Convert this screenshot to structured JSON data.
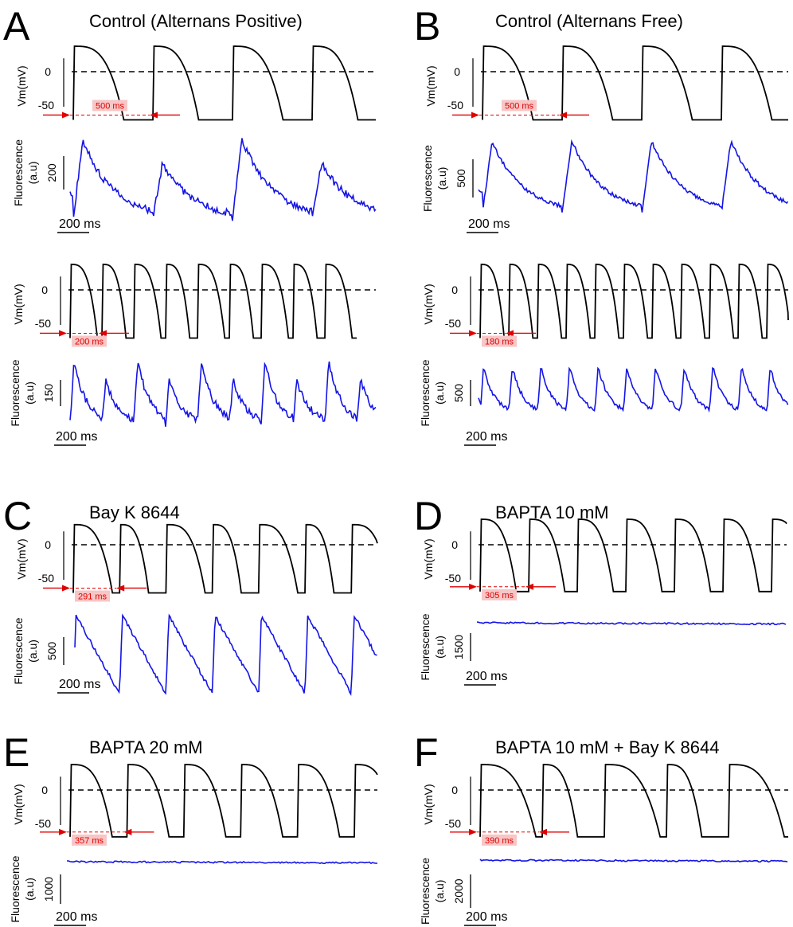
{
  "colors": {
    "voltage_trace": "#000000",
    "fluorescence_trace": "#1414e6",
    "interval_marker": "#e00000",
    "interval_label_bg": "#f7c6c6"
  },
  "chart_data": [
    {
      "type": "line",
      "panel": "A",
      "title": "Control (Alternans Positive)",
      "sub_panels": [
        {
          "interval_label": "500 ms",
          "cycle_length_ms": 500,
          "voltage": {
            "ylabel": "Vm(mV)",
            "ticks": [
              "0",
              "-50"
            ],
            "ylim": [
              -75,
              45
            ],
            "reference_line_mV": 0,
            "beats": 4,
            "peak_mV": 38,
            "rest_mV": -72
          },
          "fluorescence": {
            "ylabel": "Fluorescence",
            "unit": "(a.u)",
            "scale_bar": "200",
            "pattern": "alternating"
          },
          "time_scale_bar": "200 ms"
        },
        {
          "interval_label": "200 ms",
          "cycle_length_ms": 200,
          "voltage": {
            "ylabel": "Vm(mV)",
            "ticks": [
              "0",
              "-50"
            ],
            "ylim": [
              -75,
              45
            ],
            "reference_line_mV": 0,
            "beats": 9,
            "peak_mV": 38,
            "rest_mV": -72
          },
          "fluorescence": {
            "ylabel": "Fluorescence",
            "unit": "(a.u)",
            "scale_bar": "150",
            "pattern": "alternating"
          },
          "time_scale_bar": "200 ms"
        }
      ]
    },
    {
      "type": "line",
      "panel": "B",
      "title": "Control (Alternans Free)",
      "sub_panels": [
        {
          "interval_label": "500 ms",
          "cycle_length_ms": 500,
          "voltage": {
            "ylabel": "Vm(mV)",
            "ticks": [
              "0",
              "-50"
            ],
            "ylim": [
              -75,
              45
            ],
            "reference_line_mV": 0,
            "beats": 4,
            "peak_mV": 38,
            "rest_mV": -72
          },
          "fluorescence": {
            "ylabel": "Fluorescence",
            "unit": "(a.u)",
            "scale_bar": "500",
            "pattern": "uniform"
          },
          "time_scale_bar": "200 ms"
        },
        {
          "interval_label": "180 ms",
          "cycle_length_ms": 180,
          "voltage": {
            "ylabel": "Vm(mV)",
            "ticks": [
              "0",
              "-50"
            ],
            "ylim": [
              -75,
              45
            ],
            "reference_line_mV": 0,
            "beats": 11,
            "peak_mV": 38,
            "rest_mV": -72
          },
          "fluorescence": {
            "ylabel": "Fluorescence",
            "unit": "(a.u)",
            "scale_bar": "500",
            "pattern": "uniform"
          },
          "time_scale_bar": "200 ms"
        }
      ]
    },
    {
      "type": "line",
      "panel": "C",
      "title": "Bay K 8644",
      "sub_panels": [
        {
          "interval_label": "291 ms",
          "cycle_length_ms": 291,
          "voltage": {
            "ylabel": "Vm(mV)",
            "ticks": [
              "0",
              "-50"
            ],
            "ylim": [
              -75,
              45
            ],
            "reference_line_mV": 0,
            "beats": 7,
            "peak_mV": 30,
            "rest_mV": -72
          },
          "fluorescence": {
            "ylabel": "Fluorescence",
            "unit": "(a.u)",
            "scale_bar": "500",
            "pattern": "large-transient"
          },
          "time_scale_bar": "200 ms"
        }
      ]
    },
    {
      "type": "line",
      "panel": "D",
      "title": "BAPTA 10 mM",
      "sub_panels": [
        {
          "interval_label": "305 ms",
          "cycle_length_ms": 305,
          "voltage": {
            "ylabel": "Vm(mV)",
            "ticks": [
              "0",
              "-50"
            ],
            "ylim": [
              -75,
              45
            ],
            "reference_line_mV": 0,
            "beats": 7,
            "peak_mV": 38,
            "rest_mV": -70
          },
          "fluorescence": {
            "ylabel": "Fluorescence",
            "unit": "(a.u)",
            "scale_bar": "1500",
            "pattern": "flat"
          },
          "time_scale_bar": "200 ms"
        }
      ]
    },
    {
      "type": "line",
      "panel": "E",
      "title": "BAPTA 20 mM",
      "sub_panels": [
        {
          "interval_label": "357 ms",
          "cycle_length_ms": 357,
          "voltage": {
            "ylabel": "Vm(mV)",
            "ticks": [
              "0",
              "-50"
            ],
            "ylim": [
              -75,
              45
            ],
            "reference_line_mV": 0,
            "beats": 6,
            "peak_mV": 38,
            "rest_mV": -70
          },
          "fluorescence": {
            "ylabel": "Fluorescence",
            "unit": "(a.u)",
            "scale_bar": "1000",
            "pattern": "flat"
          },
          "time_scale_bar": "200 ms"
        }
      ]
    },
    {
      "type": "line",
      "panel": "F",
      "title": "BAPTA 10 mM + Bay K 8644",
      "sub_panels": [
        {
          "interval_label": "390 ms",
          "cycle_length_ms": 390,
          "voltage": {
            "ylabel": "Vm(mV)",
            "ticks": [
              "0",
              "-50"
            ],
            "ylim": [
              -75,
              45
            ],
            "reference_line_mV": 0,
            "beats": 7,
            "peak_mV": 38,
            "rest_mV": -70
          },
          "fluorescence": {
            "ylabel": "Fluorescence",
            "unit": "(a.u)",
            "scale_bar": "2000",
            "pattern": "flat"
          },
          "time_scale_bar": "200 ms"
        }
      ]
    }
  ]
}
